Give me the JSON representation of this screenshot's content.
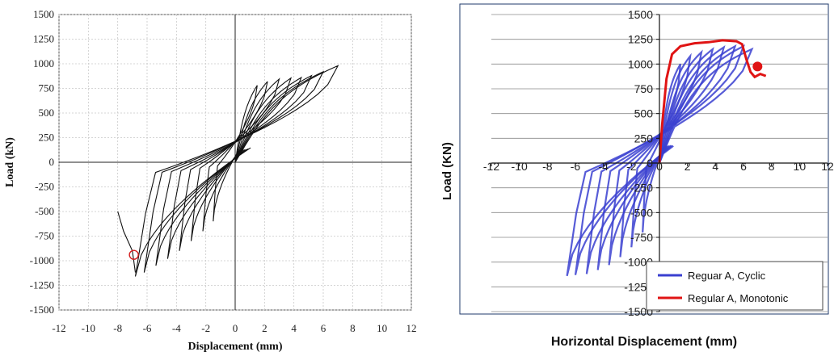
{
  "chart_data": [
    {
      "type": "line",
      "xlabel": "Displacement (mm)",
      "ylabel": "Load (kN)",
      "xlim": [
        -12,
        12
      ],
      "ylim": [
        -1500,
        1500
      ],
      "x_ticks": [
        -12,
        -10,
        -8,
        -6,
        -4,
        -2,
        0,
        2,
        4,
        6,
        8,
        10,
        12
      ],
      "y_ticks": [
        -1500,
        -1250,
        -1000,
        -750,
        -500,
        -250,
        0,
        250,
        500,
        750,
        1000,
        1250,
        1500
      ],
      "grid": "dotted",
      "series_color": "#111111",
      "marker_color": "#d62020",
      "series": [
        {
          "loops": [
            {
              "dmax": 1.5,
              "fmax": 780,
              "dmin": -1.5,
              "fmin": -600
            },
            {
              "dmax": 2.2,
              "fmax": 820,
              "dmin": -2.2,
              "fmin": -700
            },
            {
              "dmax": 3.0,
              "fmax": 845,
              "dmin": -3.0,
              "fmin": -800
            },
            {
              "dmax": 3.8,
              "fmax": 855,
              "dmin": -3.8,
              "fmin": -900
            },
            {
              "dmax": 4.5,
              "fmax": 860,
              "dmin": -4.6,
              "fmin": -980
            },
            {
              "dmax": 5.2,
              "fmax": 880,
              "dmin": -5.4,
              "fmin": -1050
            },
            {
              "dmax": 6.0,
              "fmax": 920,
              "dmin": -6.2,
              "fmin": -1120
            },
            {
              "dmax": 7.0,
              "fmax": 980,
              "dmin": -6.8,
              "fmin": -1160
            }
          ],
          "tail": [
            [
              -6.8,
              -1120
            ],
            [
              -7.0,
              -900
            ],
            [
              -7.6,
              -700
            ],
            [
              -8.0,
              -500
            ]
          ]
        }
      ],
      "marker": {
        "x": -6.9,
        "y": -940
      }
    },
    {
      "type": "line",
      "xlabel": "Horizontal Displacement (mm)",
      "ylabel": "Load (KN)",
      "xlim": [
        -12,
        12
      ],
      "ylim": [
        -1500,
        1500
      ],
      "x_ticks": [
        -12,
        -10,
        -8,
        -6,
        -4,
        -2,
        0,
        2,
        4,
        6,
        8,
        10,
        12
      ],
      "y_ticks": [
        -1500,
        -1250,
        -1000,
        -750,
        -500,
        -250,
        0,
        250,
        500,
        750,
        1000,
        1250,
        1500
      ],
      "grid": "horizontal",
      "legend_position": "bottom-right",
      "series": [
        {
          "name": "Reguar A, Cyclic",
          "color": "#3a3fd0",
          "loops": [
            {
              "dmax": 1.5,
              "fmax": 1000,
              "dmin": -1.2,
              "fmin": -700
            },
            {
              "dmax": 2.2,
              "fmax": 1080,
              "dmin": -2.0,
              "fmin": -850
            },
            {
              "dmax": 3.0,
              "fmax": 1120,
              "dmin": -2.8,
              "fmin": -950
            },
            {
              "dmax": 3.8,
              "fmax": 1150,
              "dmin": -3.6,
              "fmin": -1030
            },
            {
              "dmax": 4.6,
              "fmax": 1170,
              "dmin": -4.4,
              "fmin": -1080
            },
            {
              "dmax": 5.4,
              "fmax": 1180,
              "dmin": -5.2,
              "fmin": -1120
            },
            {
              "dmax": 6.0,
              "fmax": 1180,
              "dmin": -6.0,
              "fmin": -1130
            },
            {
              "dmax": 6.6,
              "fmax": 1150,
              "dmin": -6.6,
              "fmin": -1140
            }
          ]
        },
        {
          "name": "Regular A, Monotonic",
          "color": "#e01414",
          "points": [
            [
              0,
              0
            ],
            [
              0.2,
              400
            ],
            [
              0.5,
              850
            ],
            [
              0.9,
              1100
            ],
            [
              1.5,
              1180
            ],
            [
              2.5,
              1210
            ],
            [
              3.5,
              1220
            ],
            [
              4.5,
              1240
            ],
            [
              5.5,
              1230
            ],
            [
              5.9,
              1200
            ],
            [
              6.2,
              1050
            ],
            [
              6.5,
              920
            ],
            [
              6.8,
              870
            ],
            [
              7.2,
              900
            ],
            [
              7.6,
              880
            ]
          ]
        }
      ],
      "marker": {
        "x": 7.0,
        "y": 975
      }
    }
  ]
}
